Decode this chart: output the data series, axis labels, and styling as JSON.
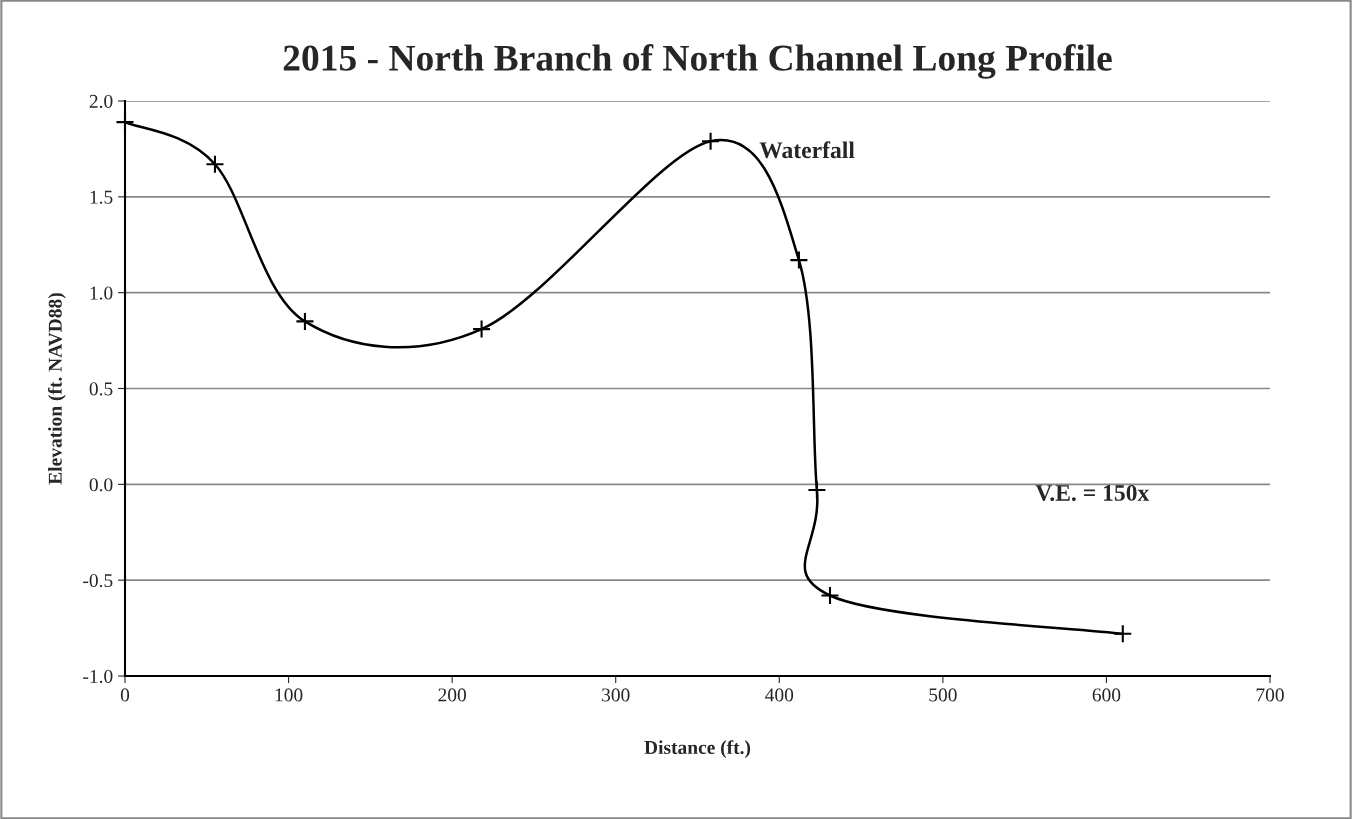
{
  "chart_data": {
    "type": "line",
    "title": "2015 - North Branch of North Channel Long Profile",
    "xlabel": "Distance (ft.)",
    "ylabel": "Elevation (ft. NAVD88)",
    "x": [
      0,
      55,
      110,
      218,
      358,
      412,
      423,
      431,
      610
    ],
    "series": [
      {
        "color": "#000000",
        "values": [
          1.89,
          1.67,
          0.85,
          0.81,
          1.79,
          1.17,
          -0.03,
          -0.58,
          -0.78
        ]
      }
    ],
    "marker": "cross",
    "line_style": "solid",
    "grid": "y",
    "legend": false,
    "xlim": [
      0,
      700
    ],
    "xticks": [
      0,
      100,
      200,
      300,
      400,
      500,
      600,
      700
    ],
    "ylim": [
      -1.0,
      2.0
    ],
    "yticks": [
      {
        "value": -1.0,
        "label": "-1.0"
      },
      {
        "value": -0.5,
        "label": "-0.5"
      },
      {
        "value": 0.0,
        "label": "0.0"
      },
      {
        "value": 0.5,
        "label": "0.5"
      },
      {
        "value": 1.0,
        "label": "1.0"
      },
      {
        "value": 1.5,
        "label": "1.5"
      },
      {
        "value": 2.0,
        "label": "2.0"
      }
    ],
    "annotations": [
      {
        "text": "Waterfall",
        "x": 358,
        "y": 1.79
      },
      "V.E. = 150x"
    ]
  }
}
